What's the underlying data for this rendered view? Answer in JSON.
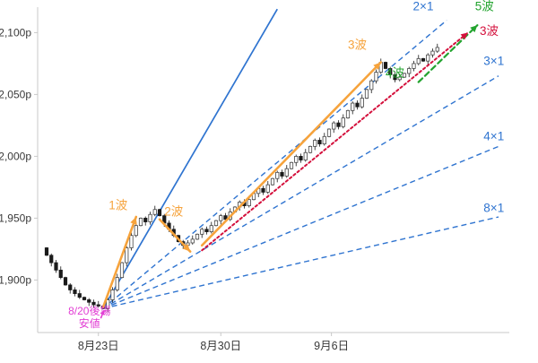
{
  "chart_data": {
    "type": "candlestick",
    "title": "",
    "ylabel": "",
    "xlabel": "",
    "grid": false,
    "y_axis": {
      "unit_suffix": "p",
      "range": [
        1855,
        2125
      ],
      "ticks": [
        {
          "price": 2100,
          "label": "2,100p"
        },
        {
          "price": 2050,
          "label": "2,050p"
        },
        {
          "price": 2000,
          "label": "2,000p"
        },
        {
          "price": 1950,
          "label": "1,950p"
        },
        {
          "price": 1900,
          "label": "1,900p"
        }
      ]
    },
    "x_axis": {
      "ticks": [
        {
          "label": "8月23日",
          "i": 11
        },
        {
          "label": "8月30日",
          "i": 37
        },
        {
          "label": "9月6日",
          "i": 60.5
        }
      ]
    },
    "candles": {
      "first_open": 1926,
      "closes": [
        1920,
        1914,
        1908,
        1902,
        1896,
        1892,
        1889,
        1886,
        1884,
        1882,
        1880,
        1879,
        1877,
        1884,
        1892,
        1902,
        1914,
        1926,
        1936,
        1944,
        1950,
        1947,
        1953,
        1957,
        1952,
        1946,
        1941,
        1936,
        1931,
        1928,
        1930,
        1933,
        1937,
        1941,
        1939,
        1944,
        1948,
        1952,
        1949,
        1955,
        1959,
        1963,
        1960,
        1965,
        1970,
        1974,
        1971,
        1977,
        1982,
        1987,
        1984,
        1990,
        1995,
        2000,
        1997,
        2003,
        2008,
        2013,
        2010,
        2016,
        2022,
        2027,
        2024,
        2031,
        2037,
        2043,
        2040,
        2047,
        2054,
        2061,
        2068,
        2076,
        2071,
        2066,
        2062,
        2064,
        2067,
        2071,
        2075,
        2079,
        2077,
        2082,
        2085,
        2088
      ],
      "up_color": "#ffffff",
      "down_color": "#1a1a1a",
      "wick_color": "#333333"
    },
    "gann_fan": {
      "color": "#2f74d0",
      "origin": {
        "i": 12,
        "price": 1877
      },
      "lines": [
        {
          "label": "",
          "style": "solid",
          "to": {
            "i": 49,
            "price": 2119
          },
          "label_at": null
        },
        {
          "label": "2×1",
          "style": "dashed",
          "to": {
            "i": 85,
            "price": 2110
          },
          "label_at": {
            "i": 80,
            "price": 2118
          }
        },
        {
          "label": "3×1",
          "style": "dashed",
          "to": {
            "i": 96,
            "price": 2065
          },
          "label_at": {
            "i": 95,
            "price": 2074
          }
        },
        {
          "label": "4×1",
          "style": "dashed",
          "to": {
            "i": 96,
            "price": 2008
          },
          "label_at": {
            "i": 95,
            "price": 2013
          }
        },
        {
          "label": "8×1",
          "style": "dashed",
          "to": {
            "i": 96,
            "price": 1951
          },
          "label_at": {
            "i": 95,
            "price": 1955
          }
        }
      ]
    },
    "wave_arrows": [
      {
        "name": "wave1-arrow",
        "color": "#f6a33c",
        "style": "solid",
        "width": 2.6,
        "from": {
          "i": 12,
          "price": 1878
        },
        "to": {
          "i": 19,
          "price": 1951
        }
      },
      {
        "name": "wave2-arrow",
        "color": "#f6a33c",
        "style": "solid",
        "width": 2.6,
        "from": {
          "i": 24,
          "price": 1949
        },
        "to": {
          "i": 30.5,
          "price": 1923
        }
      },
      {
        "name": "wave3-arrow",
        "color": "#f6a33c",
        "style": "solid",
        "width": 2.6,
        "from": {
          "i": 33,
          "price": 1928
        },
        "to": {
          "i": 71,
          "price": 2076
        }
      },
      {
        "name": "wave5-projection-arrow",
        "color": "#23a42f",
        "style": "dashed",
        "width": 2.2,
        "from": {
          "i": 79,
          "price": 2060
        },
        "to": {
          "i": 91.5,
          "price": 2106
        }
      },
      {
        "name": "wave3-projection-arrow",
        "color": "#d4103c",
        "style": "dotted",
        "width": 2.0,
        "from": {
          "i": 33,
          "price": 1924
        },
        "to": {
          "i": 89.5,
          "price": 2100
        }
      }
    ],
    "wave_labels": [
      {
        "text": "1波",
        "color": "#f6a33c",
        "i": 15.2,
        "price": 1957
      },
      {
        "text": "2波",
        "color": "#f6a33c",
        "i": 27,
        "price": 1952
      },
      {
        "text": "3波",
        "color": "#f6a33c",
        "i": 66,
        "price": 2087
      },
      {
        "text": "4波",
        "color": "#23a42f",
        "i": 74,
        "price": 2064
      },
      {
        "text": "5波",
        "color": "#23a42f",
        "i": 93,
        "price": 2118
      },
      {
        "text": "3波",
        "color": "#d4103c",
        "i": 94,
        "price": 2098
      }
    ],
    "low_annotation": {
      "lines": [
        "8/20後場",
        "安値"
      ],
      "color": "#e23ed4",
      "pos": {
        "i": 9.1,
        "price": 1872
      },
      "line_gap_price": 10,
      "arrow": {
        "from": {
          "i": 11.5,
          "price": 1869
        },
        "to": {
          "i": 12.2,
          "price": 1875.5
        }
      }
    }
  }
}
